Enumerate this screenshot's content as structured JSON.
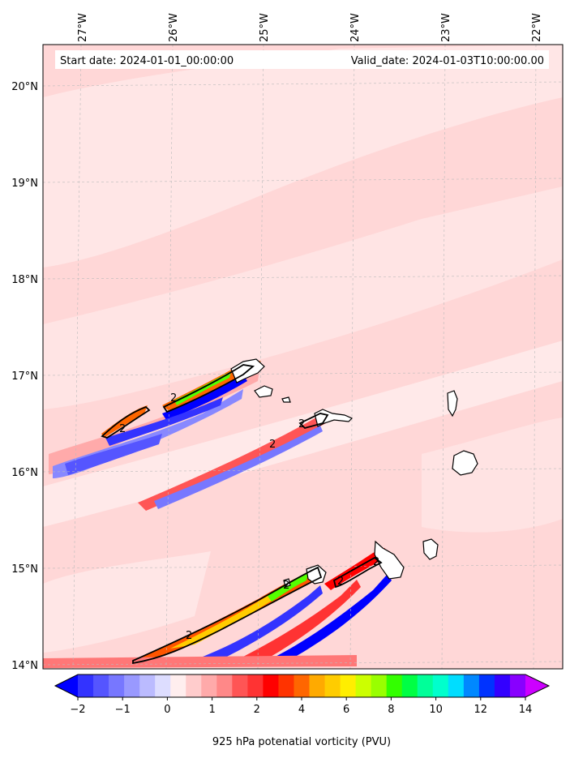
{
  "map": {
    "header": {
      "start_date": "Start date: 2024-01-01_00:00:00",
      "valid_date": "Valid_date: 2024-01-03T10:00:00.00"
    },
    "lon_labels": [
      "27°W",
      "26°W",
      "25°W",
      "24°W",
      "23°W",
      "22°W"
    ],
    "lat_labels": [
      "20°N",
      "19°N",
      "18°N",
      "17°N",
      "16°N",
      "15°N",
      "14°N"
    ],
    "contour_labels": [
      "2",
      "2",
      "2",
      "2",
      "2",
      "2",
      "2",
      "2"
    ],
    "colors": {
      "background_field": "#ffdcdc",
      "light_field": "#ffecec",
      "coast": "#000000"
    }
  },
  "colorbar": {
    "tick_labels": [
      "−2",
      "−1",
      "0",
      "1",
      "2",
      "4",
      "6",
      "8",
      "10",
      "12",
      "14"
    ],
    "label": "925 hPa potenatial vorticity (PVU)",
    "colors": [
      "#0000ff",
      "#3333ff",
      "#5555ff",
      "#7777ff",
      "#9999ff",
      "#bbbbff",
      "#ddddff",
      "#ffeeee",
      "#ffcccc",
      "#ffaaaa",
      "#ff8888",
      "#ff5555",
      "#ff3333",
      "#ff0000",
      "#ff3300",
      "#ff6600",
      "#ffaa00",
      "#ffcc00",
      "#ffee00",
      "#ccff00",
      "#99ff00",
      "#33ff00",
      "#00ff44",
      "#00ff99",
      "#00ffcc",
      "#00ddff",
      "#0088ff",
      "#0033ff",
      "#3300ff",
      "#8800ff",
      "#cc00ff"
    ]
  }
}
